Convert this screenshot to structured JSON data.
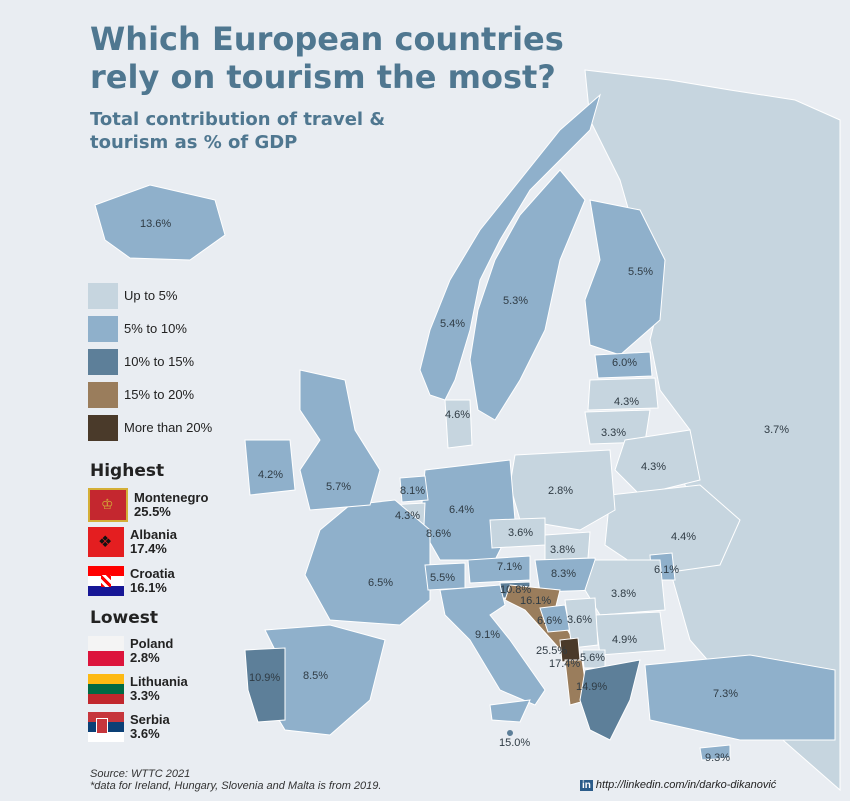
{
  "title": "Which European countries rely on tourism the most?",
  "subtitle": "Total contribution of travel & tourism as % of GDP",
  "colors": {
    "sea": "#e9edf2",
    "up_to_5": "#c6d5df",
    "5_to_10": "#8fb0cb",
    "10_to_15": "#5d7f99",
    "15_to_20": "#9a7d5c",
    "more_than_20": "#4a3a2a",
    "title": "#4f7790"
  },
  "legend": [
    {
      "label": "Up to 5%",
      "color": "#c6d5df"
    },
    {
      "label": "5% to 10%",
      "color": "#8fb0cb"
    },
    {
      "label": "10% to 15%",
      "color": "#5d7f99"
    },
    {
      "label": "15% to 20%",
      "color": "#9a7d5c"
    },
    {
      "label": "More than 20%",
      "color": "#4a3a2a"
    }
  ],
  "highest": {
    "heading": "Highest",
    "items": [
      {
        "country": "Montenegro",
        "value": "25.5%",
        "flag_icon": "montenegro-flag-icon"
      },
      {
        "country": "Albania",
        "value": "17.4%",
        "flag_icon": "albania-flag-icon"
      },
      {
        "country": "Croatia",
        "value": "16.1%",
        "flag_icon": "croatia-flag-icon"
      }
    ]
  },
  "lowest": {
    "heading": "Lowest",
    "items": [
      {
        "country": "Poland",
        "value": "2.8%",
        "flag_icon": "poland-flag-icon"
      },
      {
        "country": "Lithuania",
        "value": "3.3%",
        "flag_icon": "lithuania-flag-icon"
      },
      {
        "country": "Serbia",
        "value": "3.6%",
        "flag_icon": "serbia-flag-icon"
      }
    ]
  },
  "map_values": {
    "iceland": "13.6%",
    "norway": "5.4%",
    "sweden": "5.3%",
    "finland": "5.5%",
    "estonia": "6.0%",
    "latvia": "4.3%",
    "lithuania": "3.3%",
    "russia": "3.7%",
    "belarus": "4.3%",
    "ukraine": "4.4%",
    "moldova": "6.1%",
    "denmark": "4.6%",
    "ireland": "4.2%",
    "uk": "5.7%",
    "netherlands": "8.1%",
    "belgium": "4.3%",
    "luxembourg": "8.6%",
    "germany": "6.4%",
    "poland": "2.8%",
    "czechia": "3.6%",
    "slovakia": "3.8%",
    "austria": "7.1%",
    "hungary": "8.3%",
    "switzerland": "5.5%",
    "france": "6.5%",
    "slovenia": "10.8%",
    "croatia": "16.1%",
    "bosnia": "6.6%",
    "serbia": "3.6%",
    "romania": "3.8%",
    "bulgaria": "4.9%",
    "montenegro": "25.5%",
    "albania": "17.4%",
    "north_macedonia": "5.6%",
    "greece": "14.9%",
    "italy": "9.1%",
    "portugal": "10.9%",
    "spain": "8.5%",
    "turkey": "7.3%",
    "malta": "15.0%",
    "cyprus": "9.3%"
  },
  "source": "Source: WTTC 2021",
  "footnote": "*data for Ireland, Hungary, Slovenia and Malta is from 2019.",
  "credit_icon": "linkedin-icon",
  "credit_badge": "in",
  "credit_url": "http://linkedin.com/in/darko-dikanović"
}
